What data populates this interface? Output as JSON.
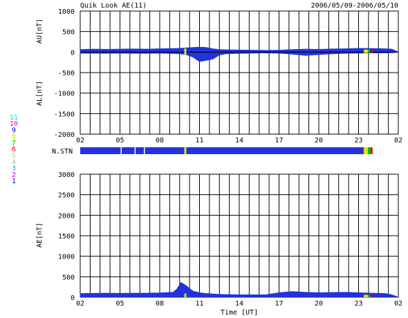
{
  "header": {
    "title": "Quik Look AE(11)",
    "date_range": "2006/05/09-2006/05/10"
  },
  "station_legend": {
    "items": [
      {
        "label": "11",
        "color": "#00e5e5"
      },
      {
        "label": "10",
        "color": "#e000e0"
      },
      {
        "label": "9",
        "color": "#0000e0"
      },
      {
        "label": "8",
        "color": "#e5e500"
      },
      {
        "label": "7",
        "color": "#00c000"
      },
      {
        "label": "6",
        "color": "#e00000"
      },
      {
        "label": "5",
        "color": "#c8c8c8"
      },
      {
        "label": "4",
        "color": "#b4b4b4"
      },
      {
        "label": "3",
        "color": "#00b0b0"
      },
      {
        "label": "2",
        "color": "#c000c0"
      },
      {
        "label": "1",
        "color": "#0000c0"
      }
    ]
  },
  "colors": {
    "fill": "#2233dd",
    "grid": "#000000",
    "highlight_yellow": "#e5e500",
    "highlight_green": "#00c000",
    "highlight_red": "#e00000"
  },
  "chart_data": [
    {
      "type": "area",
      "name": "AU/AL panel",
      "ylabel_top": "AU[nT]",
      "ylabel_bottom": "AL[nT]",
      "ylim": [
        -2000,
        1000
      ],
      "yticks": [
        1000,
        500,
        0,
        -500,
        -1000,
        -1500,
        -2000
      ],
      "xlim": [
        0,
        24
      ],
      "xticks": [
        "02",
        "05",
        "08",
        "11",
        "14",
        "17",
        "20",
        "23",
        "02"
      ],
      "au": {
        "x": [
          0,
          1,
          2,
          3,
          4,
          5,
          6,
          7,
          7.5,
          8,
          8.5,
          9,
          9.5,
          10,
          10.5,
          11,
          12,
          13,
          14,
          15,
          16,
          17,
          18,
          19,
          20,
          21,
          22,
          23,
          23.5,
          24
        ],
        "y": [
          60,
          70,
          65,
          70,
          75,
          70,
          80,
          85,
          90,
          100,
          110,
          120,
          110,
          80,
          60,
          55,
          50,
          45,
          40,
          45,
          60,
          70,
          65,
          75,
          80,
          90,
          85,
          80,
          70,
          0
        ]
      },
      "al": {
        "x": [
          0,
          1,
          2,
          3,
          4,
          5,
          6,
          7,
          7.5,
          8,
          8.5,
          9,
          9.5,
          10,
          10.5,
          11,
          12,
          13,
          14,
          15,
          16,
          17,
          18,
          19,
          20,
          21,
          22,
          23,
          23.5,
          24
        ],
        "y": [
          -30,
          -25,
          -30,
          -25,
          -30,
          -30,
          -25,
          -35,
          -40,
          -60,
          -120,
          -230,
          -200,
          -170,
          -70,
          -40,
          -30,
          -25,
          -20,
          -25,
          -50,
          -80,
          -60,
          -40,
          -30,
          -25,
          -20,
          -20,
          -15,
          0
        ]
      }
    },
    {
      "type": "table",
      "name": "station coverage",
      "label": "N.STN",
      "xlim": [
        0,
        24
      ],
      "segments": [
        {
          "x0": 0,
          "x1": 21.4,
          "color": "#2233dd"
        },
        {
          "x0": 21.4,
          "x1": 21.7,
          "color": "#e5e500"
        },
        {
          "x0": 21.7,
          "x1": 21.9,
          "color": "#00c000"
        },
        {
          "x0": 21.9,
          "x1": 22.05,
          "color": "#e00000"
        }
      ],
      "gaps": [
        3.05,
        4.1,
        4.8,
        7.9
      ],
      "yellow_marks": [
        7.85
      ]
    },
    {
      "type": "area",
      "name": "AE panel",
      "ylabel": "AE[nT]",
      "xlabel": "Time [UT]",
      "ylim": [
        0,
        3000
      ],
      "yticks": [
        3000,
        2500,
        2000,
        1500,
        1000,
        500,
        0
      ],
      "xlim": [
        0,
        24
      ],
      "xticks": [
        "02",
        "05",
        "08",
        "11",
        "14",
        "17",
        "20",
        "23",
        "02"
      ],
      "ae": {
        "x": [
          0,
          1,
          2,
          3,
          4,
          5,
          6,
          7,
          7.3,
          7.6,
          8,
          8.5,
          9,
          9.5,
          10,
          10.5,
          11,
          12,
          13,
          14,
          15,
          16,
          17,
          18,
          19,
          20,
          21,
          22,
          23,
          23.5,
          24
        ],
        "y": [
          90,
          95,
          100,
          95,
          100,
          100,
          105,
          120,
          200,
          360,
          280,
          150,
          110,
          90,
          80,
          70,
          65,
          60,
          60,
          60,
          110,
          140,
          120,
          110,
          115,
          120,
          110,
          100,
          90,
          60,
          0
        ]
      }
    }
  ]
}
